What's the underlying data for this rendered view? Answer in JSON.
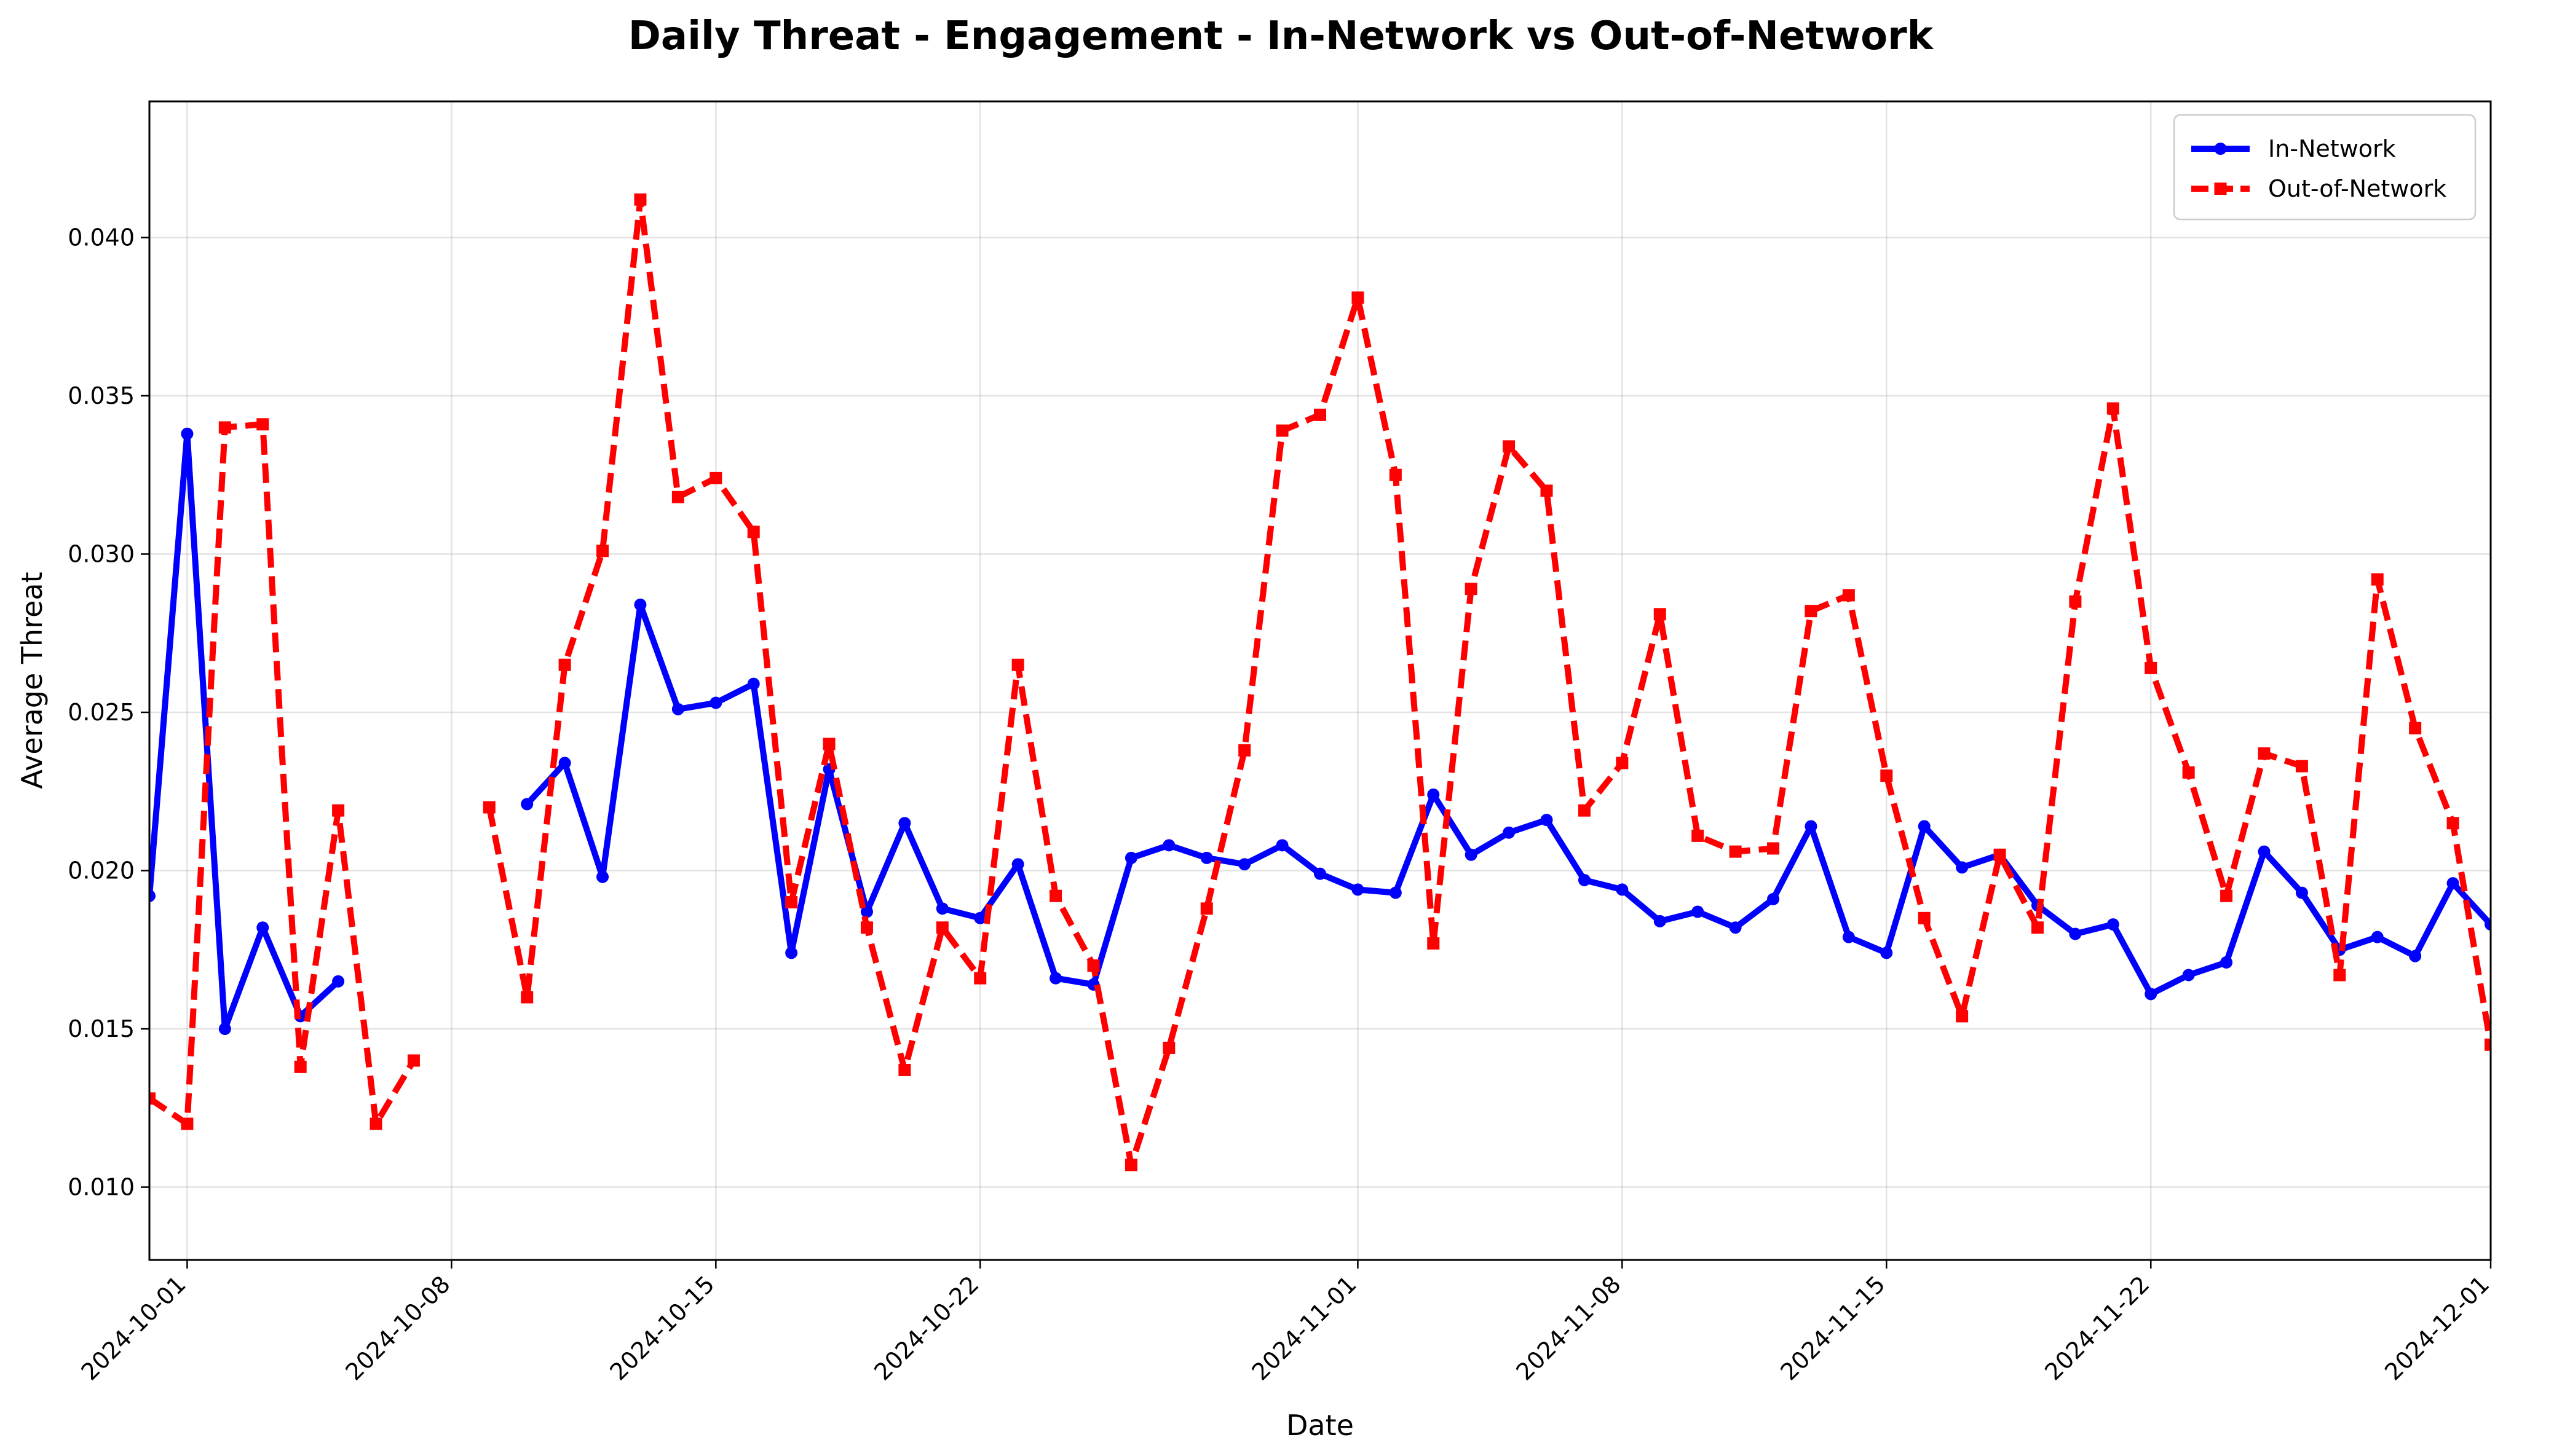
{
  "chart_data": {
    "type": "line",
    "title": "Daily Threat - Engagement - In-Network vs Out-of-Network",
    "xlabel": "Date",
    "ylabel": "Average Threat",
    "xlim": [
      "2024-09-30",
      "2024-12-01"
    ],
    "ylim": [
      0.0077,
      0.0443
    ],
    "x_ticks": [
      "2024-10-01",
      "2024-10-08",
      "2024-10-15",
      "2024-10-22",
      "2024-11-01",
      "2024-11-08",
      "2024-11-15",
      "2024-11-22",
      "2024-12-01"
    ],
    "y_ticks": [
      0.01,
      0.015,
      0.02,
      0.025,
      0.03,
      0.035,
      0.04
    ],
    "y_tick_labels": [
      "0.010",
      "0.015",
      "0.020",
      "0.025",
      "0.030",
      "0.035",
      "0.040"
    ],
    "grid": true,
    "legend_position": "top-right",
    "series": [
      {
        "name": "In-Network",
        "color": "#0000ff",
        "line_style": "solid",
        "marker": "circle",
        "points": [
          [
            "2024-09-30",
            0.0192
          ],
          [
            "2024-10-01",
            0.0338
          ],
          [
            "2024-10-02",
            0.015
          ],
          [
            "2024-10-03",
            0.0182
          ],
          [
            "2024-10-04",
            0.0154
          ],
          [
            "2024-10-05",
            0.0165
          ],
          [
            "2024-10-06",
            null
          ],
          [
            "2024-10-07",
            null
          ],
          [
            "2024-10-08",
            null
          ],
          [
            "2024-10-09",
            null
          ],
          [
            "2024-10-10",
            0.0221
          ],
          [
            "2024-10-11",
            0.0234
          ],
          [
            "2024-10-12",
            0.0198
          ],
          [
            "2024-10-13",
            0.0284
          ],
          [
            "2024-10-14",
            0.0251
          ],
          [
            "2024-10-15",
            0.0253
          ],
          [
            "2024-10-16",
            0.0259
          ],
          [
            "2024-10-17",
            0.0174
          ],
          [
            "2024-10-18",
            0.0232
          ],
          [
            "2024-10-19",
            0.0187
          ],
          [
            "2024-10-20",
            0.0215
          ],
          [
            "2024-10-21",
            0.0188
          ],
          [
            "2024-10-22",
            0.0185
          ],
          [
            "2024-10-23",
            0.0202
          ],
          [
            "2024-10-24",
            0.0166
          ],
          [
            "2024-10-25",
            0.0164
          ],
          [
            "2024-10-26",
            0.0204
          ],
          [
            "2024-10-27",
            0.0208
          ],
          [
            "2024-10-28",
            0.0204
          ],
          [
            "2024-10-29",
            0.0202
          ],
          [
            "2024-10-30",
            0.0208
          ],
          [
            "2024-10-31",
            0.0199
          ],
          [
            "2024-11-01",
            0.0194
          ],
          [
            "2024-11-02",
            0.0193
          ],
          [
            "2024-11-03",
            0.0224
          ],
          [
            "2024-11-04",
            0.0205
          ],
          [
            "2024-11-05",
            0.0212
          ],
          [
            "2024-11-06",
            0.0216
          ],
          [
            "2024-11-07",
            0.0197
          ],
          [
            "2024-11-08",
            0.0194
          ],
          [
            "2024-11-09",
            0.0184
          ],
          [
            "2024-11-10",
            0.0187
          ],
          [
            "2024-11-11",
            0.0182
          ],
          [
            "2024-11-12",
            0.0191
          ],
          [
            "2024-11-13",
            0.0214
          ],
          [
            "2024-11-14",
            0.0179
          ],
          [
            "2024-11-15",
            0.0174
          ],
          [
            "2024-11-16",
            0.0214
          ],
          [
            "2024-11-17",
            0.0201
          ],
          [
            "2024-11-18",
            0.0205
          ],
          [
            "2024-11-19",
            0.0189
          ],
          [
            "2024-11-20",
            0.018
          ],
          [
            "2024-11-21",
            0.0183
          ],
          [
            "2024-11-22",
            0.0161
          ],
          [
            "2024-11-23",
            0.0167
          ],
          [
            "2024-11-24",
            0.0171
          ],
          [
            "2024-11-25",
            0.0206
          ],
          [
            "2024-11-26",
            0.0193
          ],
          [
            "2024-11-27",
            0.0175
          ],
          [
            "2024-11-28",
            0.0179
          ],
          [
            "2024-11-29",
            0.0173
          ],
          [
            "2024-11-30",
            0.0196
          ],
          [
            "2024-12-01",
            0.0183
          ]
        ]
      },
      {
        "name": "Out-of-Network",
        "color": "#ff0000",
        "line_style": "dashed",
        "marker": "square",
        "points": [
          [
            "2024-09-30",
            0.0128
          ],
          [
            "2024-10-01",
            0.012
          ],
          [
            "2024-10-02",
            0.034
          ],
          [
            "2024-10-03",
            0.0341
          ],
          [
            "2024-10-04",
            0.0138
          ],
          [
            "2024-10-05",
            0.0219
          ],
          [
            "2024-10-06",
            0.012
          ],
          [
            "2024-10-07",
            0.014
          ],
          [
            "2024-10-08",
            null
          ],
          [
            "2024-10-09",
            0.022
          ],
          [
            "2024-10-10",
            0.016
          ],
          [
            "2024-10-11",
            0.0265
          ],
          [
            "2024-10-12",
            0.0301
          ],
          [
            "2024-10-13",
            0.0412
          ],
          [
            "2024-10-14",
            0.0318
          ],
          [
            "2024-10-15",
            0.0324
          ],
          [
            "2024-10-16",
            0.0307
          ],
          [
            "2024-10-17",
            0.019
          ],
          [
            "2024-10-18",
            0.024
          ],
          [
            "2024-10-19",
            0.0182
          ],
          [
            "2024-10-20",
            0.0137
          ],
          [
            "2024-10-21",
            0.0182
          ],
          [
            "2024-10-22",
            0.0166
          ],
          [
            "2024-10-23",
            0.0265
          ],
          [
            "2024-10-24",
            0.0192
          ],
          [
            "2024-10-25",
            0.017
          ],
          [
            "2024-10-26",
            0.0107
          ],
          [
            "2024-10-27",
            0.0144
          ],
          [
            "2024-10-28",
            0.0188
          ],
          [
            "2024-10-29",
            0.0238
          ],
          [
            "2024-10-30",
            0.0339
          ],
          [
            "2024-10-31",
            0.0344
          ],
          [
            "2024-11-01",
            0.0381
          ],
          [
            "2024-11-02",
            0.0325
          ],
          [
            "2024-11-03",
            0.0177
          ],
          [
            "2024-11-04",
            0.0289
          ],
          [
            "2024-11-05",
            0.0334
          ],
          [
            "2024-11-06",
            0.032
          ],
          [
            "2024-11-07",
            0.0219
          ],
          [
            "2024-11-08",
            0.0234
          ],
          [
            "2024-11-09",
            0.0281
          ],
          [
            "2024-11-10",
            0.0211
          ],
          [
            "2024-11-11",
            0.0206
          ],
          [
            "2024-11-12",
            0.0207
          ],
          [
            "2024-11-13",
            0.0282
          ],
          [
            "2024-11-14",
            0.0287
          ],
          [
            "2024-11-15",
            0.023
          ],
          [
            "2024-11-16",
            0.0185
          ],
          [
            "2024-11-17",
            0.0154
          ],
          [
            "2024-11-18",
            0.0205
          ],
          [
            "2024-11-19",
            0.0182
          ],
          [
            "2024-11-20",
            0.0285
          ],
          [
            "2024-11-21",
            0.0346
          ],
          [
            "2024-11-22",
            0.0264
          ],
          [
            "2024-11-23",
            0.0231
          ],
          [
            "2024-11-24",
            0.0192
          ],
          [
            "2024-11-25",
            0.0237
          ],
          [
            "2024-11-26",
            0.0233
          ],
          [
            "2024-11-27",
            0.0167
          ],
          [
            "2024-11-28",
            0.0292
          ],
          [
            "2024-11-29",
            0.0245
          ],
          [
            "2024-11-30",
            0.0215
          ],
          [
            "2024-12-01",
            0.0145
          ]
        ]
      }
    ]
  }
}
